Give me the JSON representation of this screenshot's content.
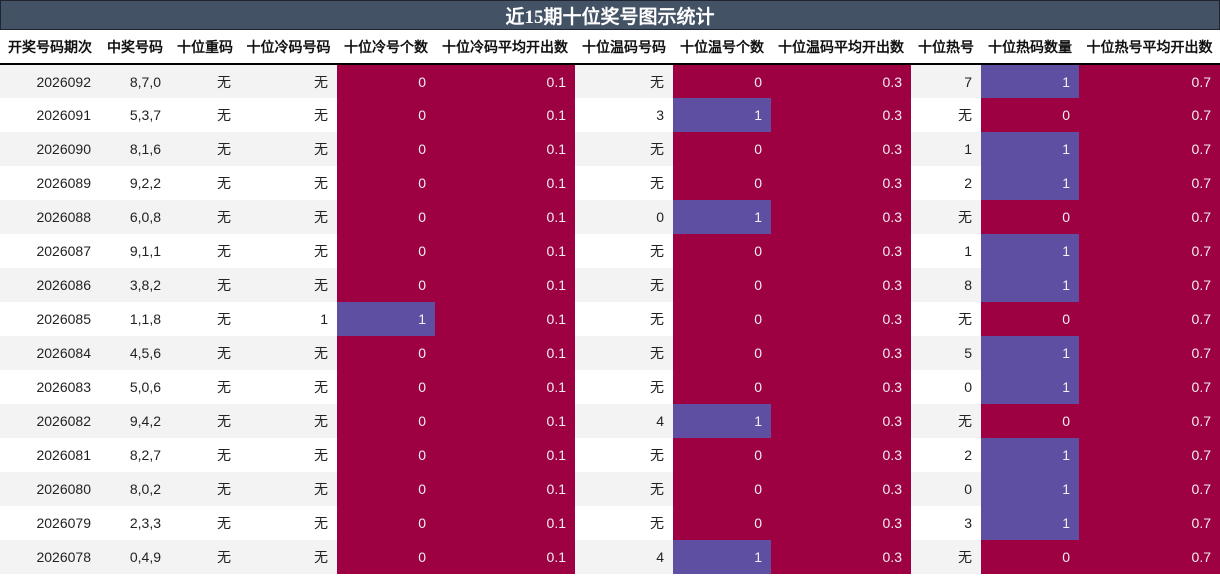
{
  "title": "近15期十位奖号图示统计",
  "colors": {
    "title_bg": "#435365",
    "low": "#9e0142",
    "high": "#5e4fa2",
    "stripe": "#f3f3f3"
  },
  "headers": [
    "开奖号码期次",
    "中奖号码",
    "十位重码",
    "十位冷码号码",
    "十位冷号个数",
    "十位冷码平均开出数",
    "十位温码号码",
    "十位温号个数",
    "十位温码平均开出数",
    "十位热号",
    "十位热码数量",
    "十位热号平均开出数"
  ],
  "rows": [
    {
      "period": "2026092",
      "numbers": "8,7,0",
      "repeat": "无",
      "cold": "无",
      "cold_count": "0",
      "cold_avg": "0.1",
      "warm": "无",
      "warm_count": "0",
      "warm_avg": "0.3",
      "hot": "7",
      "hot_count": "1",
      "hot_avg": "0.7"
    },
    {
      "period": "2026091",
      "numbers": "5,3,7",
      "repeat": "无",
      "cold": "无",
      "cold_count": "0",
      "cold_avg": "0.1",
      "warm": "3",
      "warm_count": "1",
      "warm_avg": "0.3",
      "hot": "无",
      "hot_count": "0",
      "hot_avg": "0.7"
    },
    {
      "period": "2026090",
      "numbers": "8,1,6",
      "repeat": "无",
      "cold": "无",
      "cold_count": "0",
      "cold_avg": "0.1",
      "warm": "无",
      "warm_count": "0",
      "warm_avg": "0.3",
      "hot": "1",
      "hot_count": "1",
      "hot_avg": "0.7"
    },
    {
      "period": "2026089",
      "numbers": "9,2,2",
      "repeat": "无",
      "cold": "无",
      "cold_count": "0",
      "cold_avg": "0.1",
      "warm": "无",
      "warm_count": "0",
      "warm_avg": "0.3",
      "hot": "2",
      "hot_count": "1",
      "hot_avg": "0.7"
    },
    {
      "period": "2026088",
      "numbers": "6,0,8",
      "repeat": "无",
      "cold": "无",
      "cold_count": "0",
      "cold_avg": "0.1",
      "warm": "0",
      "warm_count": "1",
      "warm_avg": "0.3",
      "hot": "无",
      "hot_count": "0",
      "hot_avg": "0.7"
    },
    {
      "period": "2026087",
      "numbers": "9,1,1",
      "repeat": "无",
      "cold": "无",
      "cold_count": "0",
      "cold_avg": "0.1",
      "warm": "无",
      "warm_count": "0",
      "warm_avg": "0.3",
      "hot": "1",
      "hot_count": "1",
      "hot_avg": "0.7"
    },
    {
      "period": "2026086",
      "numbers": "3,8,2",
      "repeat": "无",
      "cold": "无",
      "cold_count": "0",
      "cold_avg": "0.1",
      "warm": "无",
      "warm_count": "0",
      "warm_avg": "0.3",
      "hot": "8",
      "hot_count": "1",
      "hot_avg": "0.7"
    },
    {
      "period": "2026085",
      "numbers": "1,1,8",
      "repeat": "无",
      "cold": "1",
      "cold_count": "1",
      "cold_avg": "0.1",
      "warm": "无",
      "warm_count": "0",
      "warm_avg": "0.3",
      "hot": "无",
      "hot_count": "0",
      "hot_avg": "0.7"
    },
    {
      "period": "2026084",
      "numbers": "4,5,6",
      "repeat": "无",
      "cold": "无",
      "cold_count": "0",
      "cold_avg": "0.1",
      "warm": "无",
      "warm_count": "0",
      "warm_avg": "0.3",
      "hot": "5",
      "hot_count": "1",
      "hot_avg": "0.7"
    },
    {
      "period": "2026083",
      "numbers": "5,0,6",
      "repeat": "无",
      "cold": "无",
      "cold_count": "0",
      "cold_avg": "0.1",
      "warm": "无",
      "warm_count": "0",
      "warm_avg": "0.3",
      "hot": "0",
      "hot_count": "1",
      "hot_avg": "0.7"
    },
    {
      "period": "2026082",
      "numbers": "9,4,2",
      "repeat": "无",
      "cold": "无",
      "cold_count": "0",
      "cold_avg": "0.1",
      "warm": "4",
      "warm_count": "1",
      "warm_avg": "0.3",
      "hot": "无",
      "hot_count": "0",
      "hot_avg": "0.7"
    },
    {
      "period": "2026081",
      "numbers": "8,2,7",
      "repeat": "无",
      "cold": "无",
      "cold_count": "0",
      "cold_avg": "0.1",
      "warm": "无",
      "warm_count": "0",
      "warm_avg": "0.3",
      "hot": "2",
      "hot_count": "1",
      "hot_avg": "0.7"
    },
    {
      "period": "2026080",
      "numbers": "8,0,2",
      "repeat": "无",
      "cold": "无",
      "cold_count": "0",
      "cold_avg": "0.1",
      "warm": "无",
      "warm_count": "0",
      "warm_avg": "0.3",
      "hot": "0",
      "hot_count": "1",
      "hot_avg": "0.7"
    },
    {
      "period": "2026079",
      "numbers": "2,3,3",
      "repeat": "无",
      "cold": "无",
      "cold_count": "0",
      "cold_avg": "0.1",
      "warm": "无",
      "warm_count": "0",
      "warm_avg": "0.3",
      "hot": "3",
      "hot_count": "1",
      "hot_avg": "0.7"
    },
    {
      "period": "2026078",
      "numbers": "0,4,9",
      "repeat": "无",
      "cold": "无",
      "cold_count": "0",
      "cold_avg": "0.1",
      "warm": "4",
      "warm_count": "1",
      "warm_avg": "0.3",
      "hot": "无",
      "hot_count": "0",
      "hot_avg": "0.7"
    }
  ]
}
